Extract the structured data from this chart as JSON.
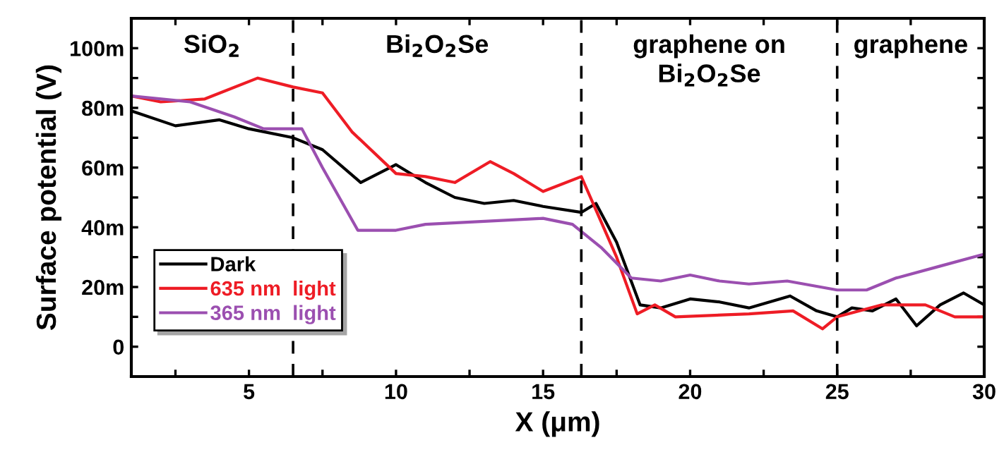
{
  "chart_data": {
    "type": "line",
    "xlabel": "X (μm)",
    "ylabel": "Surface potential (V)",
    "xlim": [
      1,
      30
    ],
    "ylim": [
      -10,
      110
    ],
    "xticks": [
      {
        "value": 2.5,
        "label": null
      },
      5,
      {
        "value": 7.5,
        "label": null
      },
      10,
      {
        "value": 12.5,
        "label": null
      },
      15,
      {
        "value": 17.5,
        "label": null
      },
      20,
      {
        "value": 22.5,
        "label": null
      },
      25,
      {
        "value": 27.5,
        "label": null
      },
      30
    ],
    "yticks": [
      0,
      {
        "value": 10,
        "label": null
      },
      {
        "value": 20,
        "label": "20m"
      },
      {
        "value": 30,
        "label": null
      },
      {
        "value": 40,
        "label": "40m"
      },
      {
        "value": 50,
        "label": null
      },
      {
        "value": 60,
        "label": "60m"
      },
      {
        "value": 70,
        "label": null
      },
      {
        "value": 80,
        "label": "80m"
      },
      {
        "value": 90,
        "label": null
      },
      {
        "value": 100,
        "label": "100m"
      }
    ],
    "series": [
      {
        "name": "Dark",
        "color": "#000000",
        "x": [
          1,
          2.5,
          4,
          5,
          6.5,
          7.5,
          8.8,
          10,
          11,
          12,
          13,
          14,
          15,
          16.3,
          16.8,
          17.5,
          18.3,
          19,
          20,
          21,
          22,
          23.4,
          24.3,
          25,
          25.5,
          26.2,
          27,
          27.7,
          28.5,
          29.3,
          30
        ],
        "values": [
          79,
          74,
          76,
          73,
          70,
          66,
          55,
          61,
          55,
          50,
          48,
          49,
          47,
          45,
          48,
          35,
          14,
          13,
          16,
          15,
          13,
          17,
          12,
          10,
          13,
          12,
          16,
          7,
          14,
          18,
          14
        ]
      },
      {
        "name": "635 nm  light",
        "color": "#ee1c25",
        "x": [
          1,
          2,
          3.5,
          5.3,
          6.5,
          7.5,
          8.5,
          10,
          11,
          12,
          13.2,
          14,
          15,
          16.3,
          17.5,
          18.2,
          18.8,
          19.5,
          22,
          23.5,
          24.5,
          25,
          26.5,
          28,
          29,
          30
        ],
        "values": [
          84,
          82,
          83,
          90,
          87,
          85,
          72,
          58,
          57,
          55,
          62,
          58,
          52,
          57,
          30,
          11,
          14,
          10,
          11,
          12,
          6,
          10,
          14,
          14,
          10,
          10
        ]
      },
      {
        "name": "365 nm  light",
        "color": "#9b4fb0",
        "x": [
          1,
          3,
          4.5,
          5.5,
          6.8,
          7.5,
          8.7,
          10,
          11,
          13,
          15,
          16,
          17,
          18,
          19,
          20,
          21,
          22,
          23.3,
          25,
          26,
          27,
          28.5,
          30
        ],
        "values": [
          84,
          82,
          77,
          73,
          73,
          60,
          39,
          39,
          41,
          42,
          43,
          41,
          33,
          23,
          22,
          24,
          22,
          21,
          22,
          19,
          19,
          23,
          27,
          31
        ]
      }
    ],
    "ref_lines": [
      {
        "axis": "x",
        "value": 6.5,
        "color": "#000000",
        "line_style": "dashed"
      },
      {
        "axis": "x",
        "value": 16.3,
        "color": "#000000",
        "line_style": "dashed"
      },
      {
        "axis": "x",
        "value": 25,
        "color": "#000000",
        "line_style": "dashed"
      }
    ],
    "annotations": [
      "SiO$_{2}$",
      "Bi$_{2}$O$_{2}$Se",
      "graphene on\nBi$_{2}$O$_{2}$Se",
      "graphene"
    ],
    "legend": "bottom left",
    "grid": false,
    "line_style": "solid",
    "marker": "none"
  }
}
